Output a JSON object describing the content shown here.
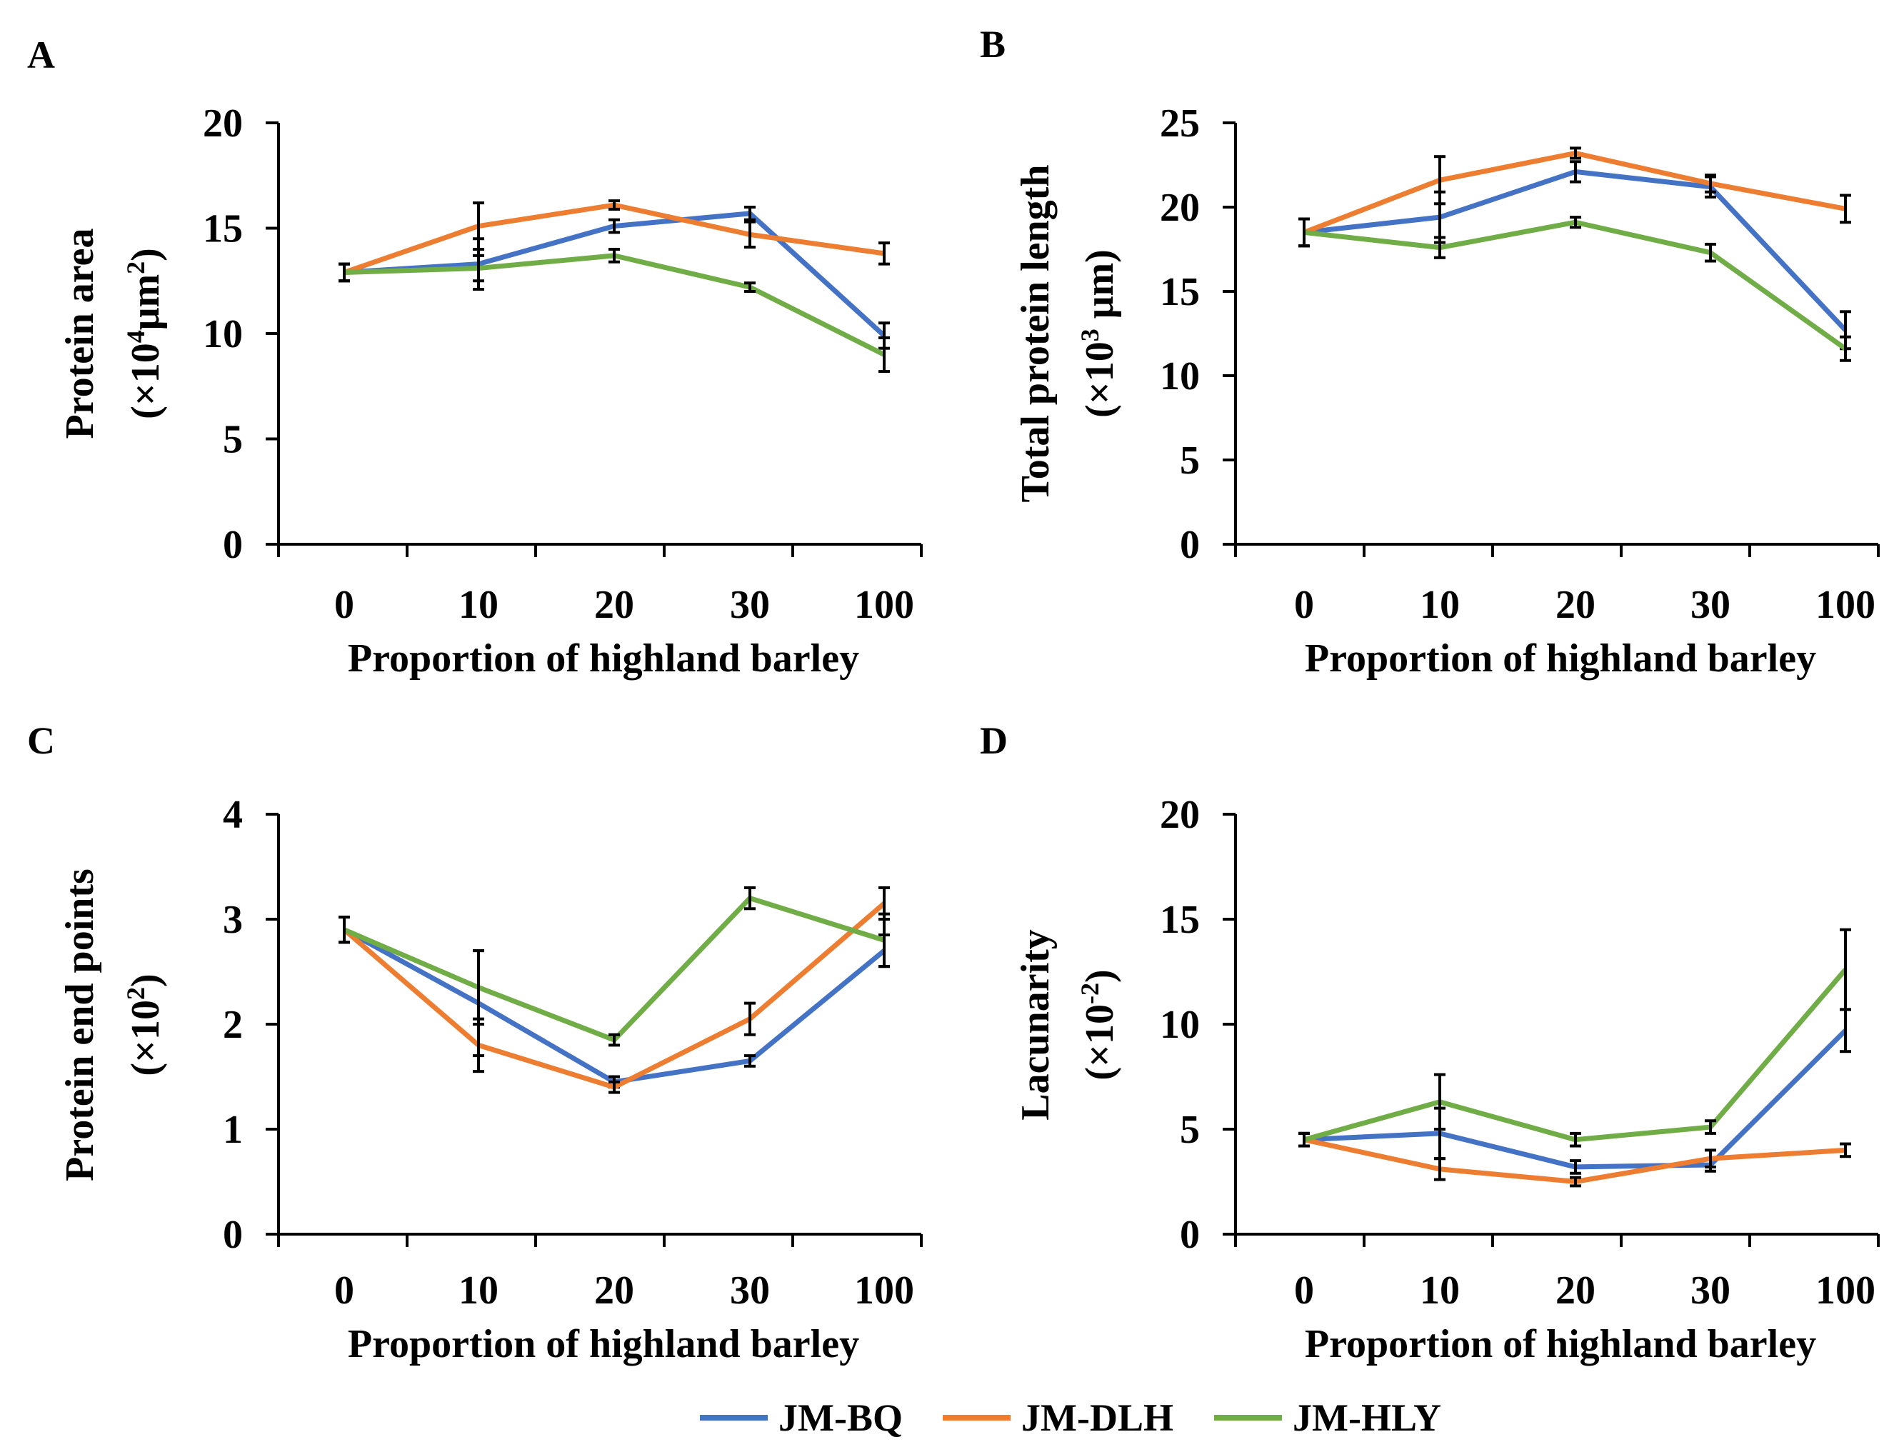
{
  "colors": {
    "JM-BQ": "#4472C4",
    "JM-DLH": "#ED7D31",
    "JM-HLY": "#70AD47",
    "axis": "#000000",
    "errorbar": "#000000"
  },
  "legend": [
    {
      "name": "JM-BQ",
      "color": "#4472C4"
    },
    {
      "name": "JM-DLH",
      "color": "#ED7D31"
    },
    {
      "name": "JM-HLY",
      "color": "#70AD47"
    }
  ],
  "chart_data": [
    {
      "id": "A",
      "panel_label": "A",
      "type": "line",
      "categories": [
        "0",
        "10",
        "20",
        "30",
        "100"
      ],
      "xlabel": "Proportion of highland barley",
      "ylabel_main": "Protein area",
      "ylabel_unit_pre": "(×10",
      "ylabel_unit_sup": "4",
      "ylabel_unit_mid": "μm",
      "ylabel_unit_sup2": "2",
      "ylabel_unit_post": ")",
      "ylim": [
        0,
        20
      ],
      "yticks": [
        0,
        5,
        10,
        15,
        20
      ],
      "series": [
        {
          "name": "JM-BQ",
          "values": [
            12.9,
            13.3,
            15.1,
            15.7,
            9.9
          ],
          "errors": [
            0.4,
            1.2,
            0.3,
            0.3,
            0.6
          ]
        },
        {
          "name": "JM-DLH",
          "values": [
            12.9,
            15.1,
            16.1,
            14.7,
            13.8
          ],
          "errors": [
            0.4,
            1.1,
            0.2,
            0.6,
            0.5
          ]
        },
        {
          "name": "JM-HLY",
          "values": [
            12.9,
            13.1,
            13.7,
            12.2,
            9.0
          ],
          "errors": [
            0.4,
            0.6,
            0.3,
            0.2,
            0.8
          ]
        }
      ]
    },
    {
      "id": "B",
      "panel_label": "B",
      "type": "line",
      "categories": [
        "0",
        "10",
        "20",
        "30",
        "100"
      ],
      "xlabel": "Proportion of highland barley",
      "ylabel_main": "Total protein length",
      "ylabel_unit_pre": "(×10",
      "ylabel_unit_sup": "3",
      "ylabel_unit_mid": " μm",
      "ylabel_unit_sup2": "",
      "ylabel_unit_post": ")",
      "ylim": [
        0,
        25
      ],
      "yticks": [
        0,
        5,
        10,
        15,
        20,
        25
      ],
      "series": [
        {
          "name": "JM-BQ",
          "values": [
            18.5,
            19.4,
            22.1,
            21.2,
            12.7
          ],
          "errors": [
            0.8,
            1.5,
            0.6,
            0.6,
            1.1
          ]
        },
        {
          "name": "JM-DLH",
          "values": [
            18.5,
            21.6,
            23.2,
            21.4,
            19.9
          ],
          "errors": [
            0.8,
            1.4,
            0.3,
            0.5,
            0.8
          ]
        },
        {
          "name": "JM-HLY",
          "values": [
            18.5,
            17.6,
            19.1,
            17.3,
            11.6
          ],
          "errors": [
            0.8,
            0.6,
            0.3,
            0.5,
            0.7
          ]
        }
      ]
    },
    {
      "id": "C",
      "panel_label": "C",
      "type": "line",
      "categories": [
        "0",
        "10",
        "20",
        "30",
        "100"
      ],
      "xlabel": "Proportion of highland barley",
      "ylabel_main": "Protein end points",
      "ylabel_unit_pre": "(×10",
      "ylabel_unit_sup": "2",
      "ylabel_unit_mid": "",
      "ylabel_unit_sup2": "",
      "ylabel_unit_post": ")",
      "ylim": [
        0,
        4
      ],
      "yticks": [
        0,
        1,
        2,
        3,
        4
      ],
      "series": [
        {
          "name": "JM-BQ",
          "values": [
            2.9,
            2.2,
            1.45,
            1.65,
            2.7
          ],
          "errors": [
            0.12,
            0.5,
            0.05,
            0.05,
            0.15
          ]
        },
        {
          "name": "JM-DLH",
          "values": [
            2.9,
            1.8,
            1.4,
            2.05,
            3.15
          ],
          "errors": [
            0.12,
            0.25,
            0.05,
            0.15,
            0.15
          ]
        },
        {
          "name": "JM-HLY",
          "values": [
            2.9,
            2.35,
            1.85,
            3.2,
            2.8
          ],
          "errors": [
            0.12,
            0.35,
            0.05,
            0.1,
            0.25
          ]
        }
      ]
    },
    {
      "id": "D",
      "panel_label": "D",
      "type": "line",
      "categories": [
        "0",
        "10",
        "20",
        "30",
        "100"
      ],
      "xlabel": "Proportion of highland barley",
      "ylabel_main": "Lacunarity",
      "ylabel_unit_pre": "(×10",
      "ylabel_unit_sup": "-2",
      "ylabel_unit_mid": "",
      "ylabel_unit_sup2": "",
      "ylabel_unit_post": ")",
      "ylim": [
        0,
        20
      ],
      "yticks": [
        0,
        5,
        10,
        15,
        20
      ],
      "series": [
        {
          "name": "JM-BQ",
          "values": [
            4.5,
            4.8,
            3.2,
            3.3,
            9.7
          ],
          "errors": [
            0.3,
            1.2,
            0.3,
            0.3,
            1.0
          ]
        },
        {
          "name": "JM-DLH",
          "values": [
            4.5,
            3.1,
            2.5,
            3.6,
            4.0
          ],
          "errors": [
            0.3,
            0.5,
            0.2,
            0.4,
            0.3
          ]
        },
        {
          "name": "JM-HLY",
          "values": [
            4.5,
            6.3,
            4.5,
            5.1,
            12.6
          ],
          "errors": [
            0.3,
            1.3,
            0.3,
            0.3,
            1.9
          ]
        }
      ]
    }
  ]
}
